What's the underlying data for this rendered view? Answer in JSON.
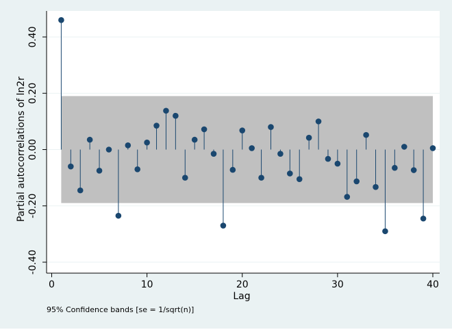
{
  "chart_data": {
    "type": "stem",
    "title": "",
    "xlabel": "Lag",
    "ylabel": "Partial autocorrelations of ln2r",
    "note": "95% Confidence bands [se = 1/sqrt(n)]",
    "xlim": [
      0,
      40
    ],
    "ylim": [
      -0.45,
      0.5
    ],
    "xticks": [
      0,
      10,
      20,
      30,
      40
    ],
    "xtick_labels": [
      "0",
      "10",
      "20",
      "30",
      "40"
    ],
    "yticks": [
      -0.4,
      -0.2,
      0.0,
      0.2,
      0.4
    ],
    "ytick_labels": [
      "-0.40",
      "-0.20",
      "0.00",
      "0.20",
      "0.40"
    ],
    "confidence_band": {
      "lower": -0.19,
      "upper": 0.19,
      "from_lag": 1,
      "to_lag": 40
    },
    "series": [
      {
        "name": "PACF",
        "lags": [
          1,
          2,
          3,
          4,
          5,
          6,
          7,
          8,
          9,
          10,
          11,
          12,
          13,
          14,
          15,
          16,
          17,
          18,
          19,
          20,
          21,
          22,
          23,
          24,
          25,
          26,
          27,
          28,
          29,
          30,
          31,
          32,
          33,
          34,
          35,
          36,
          37,
          38,
          39,
          40
        ],
        "values": [
          0.46,
          -0.06,
          -0.145,
          0.035,
          -0.075,
          0.0,
          -0.235,
          0.015,
          -0.07,
          0.025,
          0.085,
          0.138,
          0.12,
          -0.1,
          0.035,
          0.072,
          -0.015,
          -0.27,
          -0.072,
          0.068,
          0.005,
          -0.1,
          0.08,
          -0.015,
          -0.085,
          -0.105,
          0.042,
          0.1,
          -0.033,
          -0.05,
          -0.168,
          -0.113,
          0.052,
          -0.133,
          -0.29,
          -0.065,
          0.01,
          -0.073,
          -0.245,
          0.005
        ]
      }
    ],
    "colors": {
      "marker": "#1a476f",
      "stem": "#1a476f",
      "band": "#c0c0c0",
      "plot_bg": "#ffffff",
      "outer_bg": "#eaf2f3",
      "grid": "#eaf2f3"
    }
  }
}
